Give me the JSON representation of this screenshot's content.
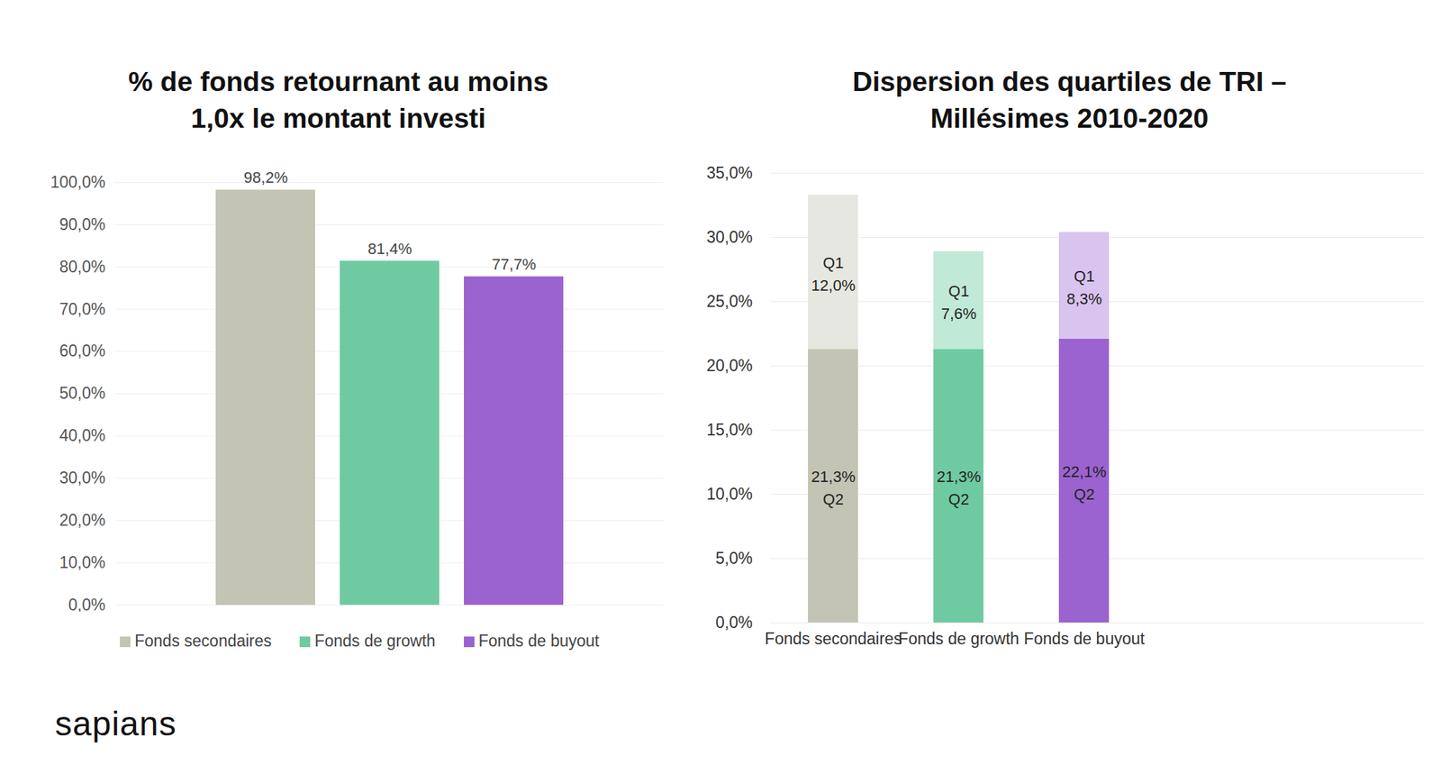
{
  "chart_data": [
    {
      "type": "bar",
      "title": "% de fonds retournant au moins\n1,0x le montant investi",
      "categories": [
        "Fonds secondaires",
        "Fonds de growth",
        "Fonds de buyout"
      ],
      "values": [
        98.2,
        81.4,
        77.7
      ],
      "value_labels": [
        "98,2%",
        "81,4%",
        "77,7%"
      ],
      "colors": [
        "#c3c4b3",
        "#6fcaa1",
        "#9b63d0"
      ],
      "ylim": [
        0,
        100
      ],
      "yticks": [
        {
          "value": 0,
          "label": "0,0%"
        },
        {
          "value": 10,
          "label": "10,0%"
        },
        {
          "value": 20,
          "label": "20,0%"
        },
        {
          "value": 30,
          "label": "30,0%"
        },
        {
          "value": 40,
          "label": "40,0%"
        },
        {
          "value": 50,
          "label": "50,0%"
        },
        {
          "value": 60,
          "label": "60,0%"
        },
        {
          "value": 70,
          "label": "70,0%"
        },
        {
          "value": 80,
          "label": "80,0%"
        },
        {
          "value": 90,
          "label": "90,0%"
        },
        {
          "value": 100,
          "label": "100,0%"
        }
      ],
      "grid": true,
      "data_labels": true,
      "legend": "bottom",
      "tick_labels": "y"
    },
    {
      "type": "bar",
      "title": "Dispersion des quartiles de TRI –\nMillésimes 2010-2020",
      "categories": [
        "Fonds secondaires",
        "Fonds de growth",
        "Fonds de buyout"
      ],
      "stacked": true,
      "series": [
        {
          "name": "Q2",
          "values": [
            21.3,
            21.3,
            22.1
          ],
          "value_labels": [
            "21,3%",
            "21,3%",
            "22,1%"
          ],
          "colors": [
            "#c3c4b3",
            "#6fcaa1",
            "#9b63d0"
          ]
        },
        {
          "name": "Q1",
          "values": [
            12.0,
            7.6,
            8.3
          ],
          "value_labels": [
            "12,0%",
            "7,6%",
            "8,3%"
          ],
          "colors": [
            "#e6e7e0",
            "#c1e9d7",
            "#d9c3ef"
          ]
        }
      ],
      "ylim": [
        0,
        35
      ],
      "yticks": [
        {
          "value": 0,
          "label": "0,0%"
        },
        {
          "value": 5,
          "label": "5,0%"
        },
        {
          "value": 10,
          "label": "10,0%"
        },
        {
          "value": 15,
          "label": "15,0%"
        },
        {
          "value": 20,
          "label": "20,0%"
        },
        {
          "value": 25,
          "label": "25,0%"
        },
        {
          "value": 30,
          "label": "30,0%"
        },
        {
          "value": 35,
          "label": "35,0%"
        }
      ],
      "grid": true,
      "data_labels": true
    }
  ],
  "footer": {
    "brand": "sapians"
  }
}
